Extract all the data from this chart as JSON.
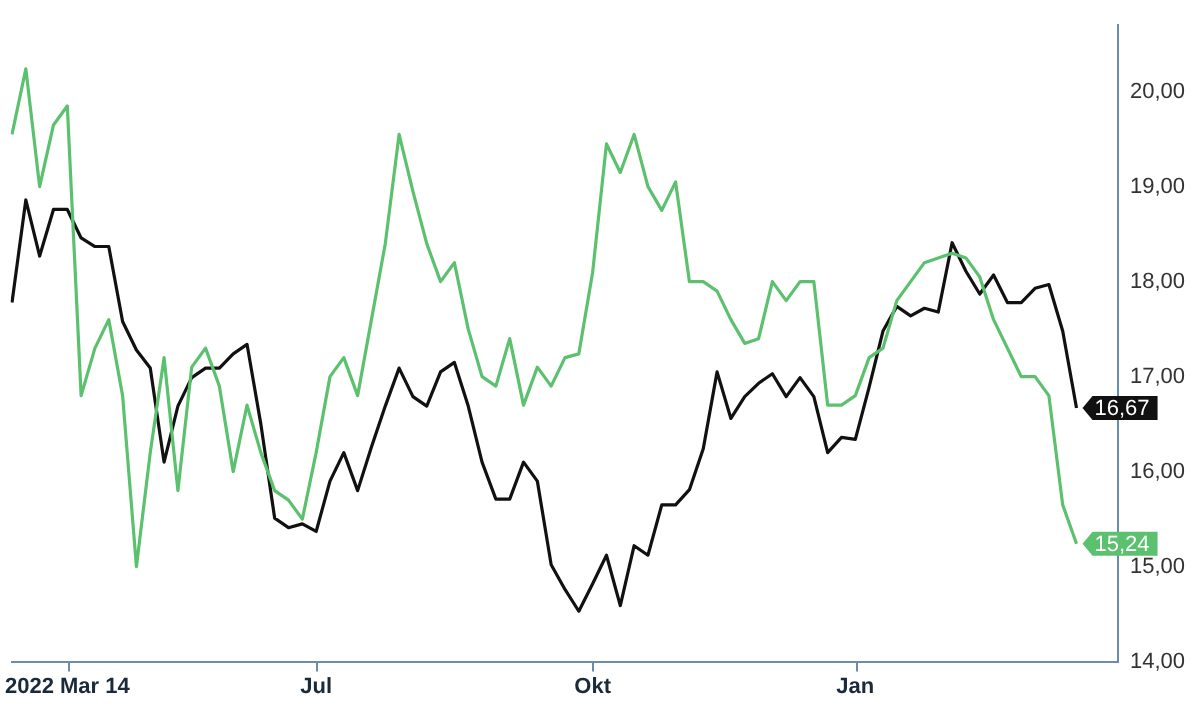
{
  "chart_data": {
    "type": "line",
    "categories": [
      null,
      null,
      null,
      null,
      "2022 Mar 14",
      null,
      null,
      null,
      null,
      null,
      null,
      null,
      null,
      null,
      null,
      null,
      null,
      null,
      null,
      null,
      null,
      null,
      "Jul",
      null,
      null,
      null,
      null,
      null,
      null,
      null,
      null,
      null,
      null,
      null,
      null,
      null,
      null,
      null,
      null,
      null,
      null,
      null,
      "Okt",
      null,
      null,
      null,
      null,
      null,
      null,
      null,
      null,
      null,
      null,
      null,
      null,
      null,
      null,
      null,
      null,
      null,
      null,
      "Jan",
      null,
      null,
      null,
      null,
      null,
      null,
      null,
      null,
      null,
      null,
      null,
      null,
      null,
      null,
      null,
      null,
      null,
      null,
      null
    ],
    "series": [
      {
        "color": "#5cc16e",
        "values": [
          19.55,
          20.24,
          19.0,
          19.65,
          19.85,
          16.8,
          17.3,
          17.6,
          16.8,
          15.0,
          16.2,
          17.2,
          15.8,
          17.1,
          17.3,
          16.9,
          16.0,
          16.7,
          16.2,
          15.8,
          15.7,
          15.5,
          16.2,
          17.0,
          17.2,
          16.8,
          17.6,
          18.4,
          19.55,
          18.95,
          18.4,
          18.0,
          18.2,
          17.5,
          17.0,
          16.9,
          17.4,
          16.7,
          17.1,
          16.9,
          17.2,
          17.24,
          18.1,
          19.45,
          19.15,
          19.55,
          19.0,
          18.75,
          19.05,
          18.0,
          18.0,
          17.9,
          17.6,
          17.35,
          17.4,
          18.0,
          17.8,
          18.0,
          18.0,
          16.7,
          16.7,
          16.8,
          17.2,
          17.3,
          17.8,
          18.0,
          18.2,
          18.25,
          18.3,
          18.25,
          18.05,
          17.6,
          17.3,
          17.0,
          17.0,
          16.8,
          15.65,
          15.24,
          null,
          null,
          null
        ],
        "value_labels": [
          null,
          null,
          null,
          null,
          null,
          null,
          null,
          null,
          null,
          null,
          null,
          null,
          null,
          null,
          null,
          null,
          null,
          null,
          null,
          null,
          null,
          null,
          null,
          null,
          null,
          null,
          null,
          null,
          null,
          null,
          null,
          null,
          null,
          null,
          null,
          null,
          null,
          null,
          null,
          null,
          null,
          null,
          null,
          null,
          null,
          null,
          null,
          null,
          null,
          null,
          null,
          null,
          null,
          null,
          null,
          null,
          null,
          null,
          null,
          null,
          null,
          null,
          null,
          null,
          null,
          null,
          null,
          null,
          null,
          null,
          null,
          null,
          null,
          null,
          null,
          null,
          null,
          "15,24",
          null,
          null,
          null
        ]
      },
      {
        "color": "#111111",
        "values": [
          17.78,
          18.86,
          18.27,
          18.76,
          18.76,
          18.46,
          18.37,
          18.37,
          17.58,
          17.28,
          17.09,
          16.1,
          16.69,
          16.99,
          17.09,
          17.09,
          17.24,
          17.34,
          16.5,
          15.51,
          15.41,
          15.45,
          15.37,
          15.9,
          16.2,
          15.8,
          16.26,
          16.69,
          17.09,
          16.79,
          16.69,
          17.05,
          17.15,
          16.69,
          16.1,
          15.71,
          15.71,
          16.1,
          15.9,
          15.02,
          14.76,
          14.53,
          14.82,
          15.12,
          14.59,
          15.22,
          15.12,
          15.65,
          15.65,
          15.81,
          16.24,
          17.05,
          16.56,
          16.79,
          16.93,
          17.03,
          16.79,
          16.99,
          16.79,
          16.2,
          16.36,
          16.34,
          16.89,
          17.48,
          17.74,
          17.64,
          17.72,
          17.68,
          18.41,
          18.11,
          17.87,
          18.07,
          17.78,
          17.78,
          17.93,
          17.97,
          17.48,
          16.67,
          null,
          null,
          null
        ],
        "value_labels": [
          null,
          null,
          null,
          null,
          null,
          null,
          null,
          null,
          null,
          null,
          null,
          null,
          null,
          null,
          null,
          null,
          null,
          null,
          null,
          null,
          null,
          null,
          null,
          null,
          null,
          null,
          null,
          null,
          null,
          null,
          null,
          null,
          null,
          null,
          null,
          null,
          null,
          null,
          null,
          null,
          null,
          null,
          null,
          null,
          null,
          null,
          null,
          null,
          null,
          null,
          null,
          null,
          null,
          null,
          null,
          null,
          null,
          null,
          null,
          null,
          null,
          null,
          null,
          null,
          null,
          null,
          null,
          null,
          null,
          null,
          null,
          null,
          null,
          null,
          null,
          null,
          null,
          "16,67",
          null,
          null,
          null
        ]
      }
    ],
    "ylim": [
      14,
      20.7
    ],
    "yticks": [
      {
        "value": 14,
        "label": "14,00"
      },
      {
        "value": 15,
        "label": "15,00"
      },
      {
        "value": 16,
        "label": "16,00"
      },
      {
        "value": 17,
        "label": "17,00"
      },
      {
        "value": 18,
        "label": "18,00"
      },
      {
        "value": 19,
        "label": "19,00"
      },
      {
        "value": 20,
        "label": "20,00"
      }
    ],
    "grid": false,
    "legend": false,
    "marker": "none",
    "line_style": "solid"
  }
}
